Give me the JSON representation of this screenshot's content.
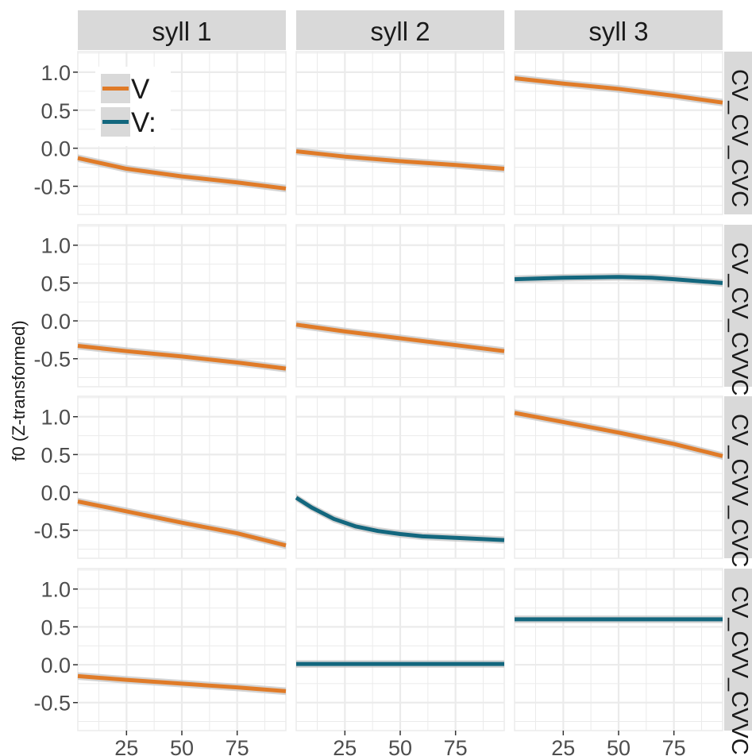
{
  "chart_data": {
    "type": "line",
    "ylabel": "f0 (Z-transformed)",
    "xlabel": "",
    "xlim": [
      3,
      97
    ],
    "ylim": [
      -0.87,
      1.27
    ],
    "x_ticks": [
      25,
      50,
      75
    ],
    "y_ticks": [
      1.0,
      0.5,
      0.0,
      -0.5
    ],
    "y_tick_labels": [
      "1.0",
      "0.5",
      "0.0",
      "-0.5"
    ],
    "grid": true,
    "columns": [
      "syll 1",
      "syll 2",
      "syll 3"
    ],
    "rows": [
      "CV_CV_CVC",
      "CV_CV_CVVC",
      "CV_CVV_CVC",
      "CV_CVV_CVVC"
    ],
    "legend": {
      "placement": "top-left inside first panel",
      "entries": [
        {
          "label": "V",
          "color": "#E07B28"
        },
        {
          "label": "V:",
          "color": "#13677E"
        }
      ]
    },
    "colors": {
      "V": "#E07B28",
      "V:": "#13677E",
      "ribbon": "#C6C6C6",
      "panel_bg": "#FFFFFF",
      "grid": "#EBEBEB",
      "strip_bg": "#D9D9D9"
    },
    "panels": [
      {
        "row": 0,
        "col": 0,
        "series": "V",
        "x": [
          3,
          25,
          50,
          75,
          97
        ],
        "y": [
          -0.13,
          -0.27,
          -0.37,
          -0.45,
          -0.53
        ]
      },
      {
        "row": 0,
        "col": 1,
        "series": "V",
        "x": [
          3,
          25,
          50,
          75,
          97
        ],
        "y": [
          -0.04,
          -0.11,
          -0.17,
          -0.22,
          -0.27
        ]
      },
      {
        "row": 0,
        "col": 2,
        "series": "V",
        "x": [
          3,
          25,
          50,
          75,
          97
        ],
        "y": [
          0.92,
          0.85,
          0.78,
          0.69,
          0.6
        ]
      },
      {
        "row": 1,
        "col": 0,
        "series": "V",
        "x": [
          3,
          25,
          50,
          75,
          97
        ],
        "y": [
          -0.33,
          -0.4,
          -0.47,
          -0.55,
          -0.63
        ]
      },
      {
        "row": 1,
        "col": 1,
        "series": "V",
        "x": [
          3,
          25,
          50,
          75,
          97
        ],
        "y": [
          -0.05,
          -0.14,
          -0.23,
          -0.32,
          -0.4
        ]
      },
      {
        "row": 1,
        "col": 2,
        "series": "V:",
        "x": [
          3,
          25,
          50,
          65,
          75,
          97
        ],
        "y": [
          0.55,
          0.57,
          0.58,
          0.57,
          0.55,
          0.5
        ]
      },
      {
        "row": 2,
        "col": 0,
        "series": "V",
        "x": [
          3,
          25,
          50,
          75,
          97
        ],
        "y": [
          -0.12,
          -0.25,
          -0.4,
          -0.54,
          -0.7
        ]
      },
      {
        "row": 2,
        "col": 1,
        "series": "V:",
        "x": [
          3,
          10,
          20,
          30,
          40,
          50,
          60,
          75,
          97
        ],
        "y": [
          -0.07,
          -0.2,
          -0.35,
          -0.45,
          -0.51,
          -0.55,
          -0.58,
          -0.6,
          -0.63
        ]
      },
      {
        "row": 2,
        "col": 2,
        "series": "V",
        "x": [
          3,
          25,
          50,
          75,
          97
        ],
        "y": [
          1.05,
          0.93,
          0.79,
          0.64,
          0.48
        ]
      },
      {
        "row": 3,
        "col": 0,
        "series": "V",
        "x": [
          3,
          25,
          50,
          75,
          97
        ],
        "y": [
          -0.15,
          -0.2,
          -0.25,
          -0.3,
          -0.35
        ]
      },
      {
        "row": 3,
        "col": 1,
        "series": "V:",
        "x": [
          3,
          25,
          50,
          75,
          97
        ],
        "y": [
          0.01,
          0.01,
          0.01,
          0.01,
          0.01
        ]
      },
      {
        "row": 3,
        "col": 2,
        "series": "V:",
        "x": [
          3,
          25,
          50,
          75,
          97
        ],
        "y": [
          0.6,
          0.6,
          0.6,
          0.6,
          0.6
        ]
      }
    ]
  }
}
